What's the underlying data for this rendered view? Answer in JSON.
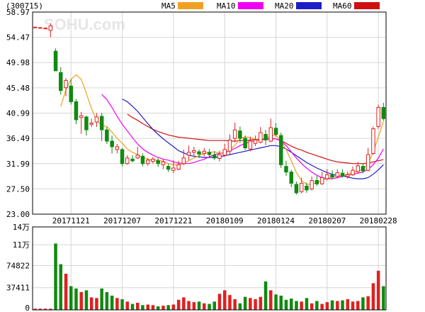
{
  "stock": {
    "code": "(300715)",
    "watermark": "SOHU.com"
  },
  "colors": {
    "ma5": "#f0a020",
    "ma10": "#f000f0",
    "ma20": "#1c1cc8",
    "ma60": "#d01010",
    "up": "#e02020",
    "down": "#108a10",
    "grid": "#d6d6d6",
    "frame": "#000000"
  },
  "legend": [
    {
      "label": "MA5",
      "key": "ma5"
    },
    {
      "label": "MA10",
      "key": "ma10"
    },
    {
      "label": "MA20",
      "key": "ma20"
    },
    {
      "label": "MA60",
      "key": "ma60"
    }
  ],
  "chart_data": [
    {
      "type": "candlestick",
      "ylim": [
        23.0,
        58.97
      ],
      "y_ticks": [
        "58.97",
        "54.47",
        "49.98",
        "45.48",
        "40.99",
        "36.49",
        "31.99",
        "27.50",
        "23.00"
      ],
      "x_ticks": [
        "20171121",
        "20171207",
        "20171221",
        "20180109",
        "20180124",
        "20180207",
        "20180228"
      ],
      "x_tick_index": [
        7,
        17,
        27,
        37,
        47,
        57,
        67
      ],
      "candles": [
        [
          56.3,
          56.3,
          56.3,
          56.3
        ],
        [
          56.2,
          56.2,
          56.2,
          56.2
        ],
        [
          56.1,
          56.1,
          56.1,
          56.1
        ],
        [
          55.7,
          56.5,
          57.0,
          54.5
        ],
        [
          52.0,
          48.5,
          52.5,
          48.5
        ],
        [
          48.2,
          45.0,
          49.2,
          44.3
        ],
        [
          45.5,
          46.8,
          47.2,
          44.0
        ],
        [
          45.8,
          43.0,
          47.0,
          42.5
        ],
        [
          43.0,
          39.8,
          43.5,
          39.0
        ],
        [
          40.2,
          40.5,
          41.2,
          37.3
        ],
        [
          40.3,
          38.0,
          40.5,
          37.0
        ],
        [
          39.0,
          39.2,
          40.0,
          38.5
        ],
        [
          39.4,
          40.3,
          41.0,
          38.5
        ],
        [
          40.4,
          38.0,
          41.0,
          36.0
        ],
        [
          38.0,
          36.0,
          38.5,
          35.5
        ],
        [
          36.0,
          35.0,
          37.0,
          33.8
        ],
        [
          34.5,
          35.0,
          35.5,
          33.8
        ],
        [
          34.5,
          32.0,
          34.8,
          31.5
        ],
        [
          32.0,
          33.0,
          33.5,
          31.8
        ],
        [
          32.8,
          32.5,
          33.5,
          32.2
        ],
        [
          33.0,
          33.5,
          35.0,
          32.8
        ],
        [
          33.3,
          32.0,
          33.8,
          31.5
        ],
        [
          32.0,
          32.6,
          33.0,
          31.6
        ],
        [
          32.4,
          32.8,
          33.2,
          32.0
        ],
        [
          32.5,
          32.0,
          33.0,
          31.4
        ],
        [
          31.8,
          32.3,
          32.8,
          31.0
        ],
        [
          31.5,
          31.0,
          32.0,
          30.5
        ],
        [
          30.8,
          31.2,
          32.6,
          30.3
        ],
        [
          31.0,
          31.8,
          32.5,
          30.8
        ],
        [
          32.0,
          33.0,
          34.5,
          31.7
        ],
        [
          33.5,
          34.0,
          35.2,
          32.6
        ],
        [
          34.0,
          34.3,
          35.0,
          33.4
        ],
        [
          34.1,
          33.7,
          34.5,
          33.0
        ],
        [
          33.8,
          34.2,
          34.8,
          33.3
        ],
        [
          34.0,
          33.6,
          34.6,
          33.0
        ],
        [
          33.5,
          33.0,
          34.2,
          32.6
        ],
        [
          32.9,
          33.6,
          34.3,
          32.4
        ],
        [
          33.5,
          34.5,
          35.5,
          33.2
        ],
        [
          34.2,
          36.2,
          37.2,
          33.5
        ],
        [
          36.5,
          38.0,
          39.3,
          35.8
        ],
        [
          37.8,
          36.5,
          38.6,
          35.7
        ],
        [
          36.5,
          34.8,
          37.0,
          34.4
        ],
        [
          34.6,
          36.0,
          36.8,
          34.2
        ],
        [
          35.6,
          36.2,
          37.0,
          35.1
        ],
        [
          35.8,
          37.5,
          38.5,
          35.6
        ],
        [
          37.2,
          36.2,
          38.0,
          35.3
        ],
        [
          36.0,
          38.4,
          40.0,
          35.8
        ],
        [
          38.3,
          37.2,
          39.2,
          36.8
        ],
        [
          37.0,
          31.8,
          37.5,
          31.2
        ],
        [
          31.5,
          30.5,
          32.5,
          29.8
        ],
        [
          30.5,
          28.5,
          30.9,
          27.8
        ],
        [
          28.3,
          26.8,
          28.8,
          26.5
        ],
        [
          27.0,
          28.5,
          29.5,
          26.7
        ],
        [
          28.0,
          27.3,
          28.6,
          26.8
        ],
        [
          27.5,
          29.0,
          29.7,
          27.2
        ],
        [
          29.0,
          28.4,
          29.8,
          28.0
        ],
        [
          28.4,
          29.5,
          30.5,
          28.2
        ],
        [
          29.3,
          30.0,
          31.0,
          29.0
        ],
        [
          30.0,
          29.6,
          30.8,
          29.2
        ],
        [
          29.7,
          30.4,
          31.0,
          29.4
        ],
        [
          30.3,
          29.8,
          31.0,
          29.5
        ],
        [
          29.7,
          30.0,
          30.6,
          29.3
        ],
        [
          30.0,
          30.8,
          31.5,
          29.8
        ],
        [
          30.6,
          31.6,
          32.3,
          30.2
        ],
        [
          31.5,
          30.7,
          32.0,
          30.3
        ],
        [
          30.8,
          33.6,
          34.8,
          30.6
        ],
        [
          33.8,
          38.2,
          38.6,
          33.6
        ],
        [
          38.6,
          42.0,
          42.5,
          38.2
        ],
        [
          42.0,
          40.0,
          42.8,
          39.6
        ]
      ],
      "ma5": [
        null,
        null,
        null,
        null,
        null,
        42.2,
        45.1,
        47.0,
        47.8,
        47.0,
        44.5,
        41.8,
        39.6,
        38.8,
        38.6,
        37.6,
        36.5,
        35.6,
        34.6,
        34.0,
        33.6,
        33.1,
        32.8,
        32.6,
        32.6,
        32.4,
        32.0,
        31.8,
        31.8,
        32.0,
        32.5,
        33.0,
        33.4,
        33.8,
        34.0,
        34.1,
        33.9,
        33.8,
        34.3,
        35.3,
        36.4,
        36.8,
        36.6,
        36.3,
        36.0,
        36.4,
        37.0,
        37.1,
        36.0,
        34.5,
        32.5,
        30.4,
        29.0,
        28.3,
        28.3,
        28.6,
        29.0,
        29.3,
        29.6,
        29.8,
        29.9,
        30.1,
        30.4,
        30.6,
        31.0,
        32.0,
        34.0,
        36.8,
        39.5
      ],
      "ma10": [
        null,
        null,
        null,
        null,
        null,
        null,
        null,
        null,
        null,
        null,
        null,
        null,
        null,
        44.3,
        43.4,
        42.0,
        40.4,
        39.0,
        37.8,
        36.6,
        35.5,
        34.6,
        34.0,
        33.5,
        33.1,
        32.8,
        32.6,
        32.3,
        32.1,
        32.0,
        32.0,
        32.2,
        32.5,
        32.8,
        33.2,
        33.6,
        33.8,
        34.0,
        34.3,
        34.7,
        35.2,
        35.6,
        35.9,
        36.1,
        36.2,
        36.3,
        36.4,
        36.4,
        36.0,
        35.2,
        34.1,
        33.0,
        32.0,
        31.2,
        30.5,
        29.9,
        29.5,
        29.3,
        29.3,
        29.5,
        29.7,
        29.9,
        30.1,
        30.3,
        30.5,
        31.0,
        31.8,
        33.0,
        34.6
      ],
      "ma20": [
        null,
        null,
        null,
        null,
        null,
        null,
        null,
        null,
        null,
        null,
        null,
        null,
        null,
        null,
        null,
        null,
        null,
        43.5,
        43.0,
        42.2,
        41.3,
        40.2,
        39.1,
        38.1,
        37.2,
        36.4,
        35.7,
        35.0,
        34.3,
        33.9,
        33.5,
        33.3,
        33.2,
        33.1,
        33.1,
        33.1,
        33.2,
        33.4,
        33.6,
        33.8,
        34.0,
        34.2,
        34.4,
        34.6,
        34.8,
        35.0,
        35.2,
        35.2,
        35.0,
        34.6,
        34.0,
        33.4,
        32.8,
        32.2,
        31.7,
        31.2,
        30.8,
        30.4,
        30.1,
        29.9,
        29.8,
        29.6,
        29.4,
        29.3,
        29.3,
        29.5,
        30.1,
        30.9,
        31.8
      ],
      "ma60": [
        null,
        null,
        null,
        null,
        null,
        null,
        null,
        null,
        null,
        null,
        null,
        null,
        null,
        null,
        null,
        null,
        null,
        null,
        40.8,
        40.2,
        39.7,
        39.1,
        38.6,
        38.1,
        37.7,
        37.4,
        37.1,
        36.9,
        36.7,
        36.6,
        36.5,
        36.4,
        36.3,
        36.2,
        36.1,
        36.1,
        36.1,
        36.1,
        36.0,
        36.0,
        36.1,
        36.1,
        36.2,
        36.3,
        36.3,
        36.4,
        36.4,
        36.4,
        36.1,
        35.6,
        35.1,
        34.7,
        34.4,
        34.0,
        33.7,
        33.4,
        33.1,
        32.8,
        32.5,
        32.3,
        32.2,
        32.1,
        32.0,
        32.0,
        32.0,
        32.1,
        32.3,
        32.5,
        32.7
      ]
    },
    {
      "type": "bar",
      "title": "",
      "ylim": [
        0,
        140000
      ],
      "y_ticks": [
        {
          "label": "14万",
          "value": 140000
        },
        {
          "label": "11万",
          "value": 110000
        },
        {
          "label": "74822",
          "value": 74822
        },
        {
          "label": "37411",
          "value": 37411
        },
        {
          "label": "0",
          "value": 0
        }
      ],
      "volumes": [
        2000,
        2000,
        2000,
        2000,
        112000,
        77000,
        61000,
        40000,
        36000,
        30000,
        33000,
        21000,
        20000,
        36000,
        30000,
        24000,
        20000,
        18000,
        14000,
        10000,
        12000,
        8000,
        9000,
        8000,
        6000,
        7000,
        8000,
        9000,
        17000,
        21000,
        15000,
        13000,
        14000,
        11000,
        10000,
        14000,
        27000,
        33000,
        25000,
        18000,
        11000,
        22000,
        20000,
        18000,
        22000,
        48000,
        33000,
        26000,
        24000,
        17000,
        19000,
        15000,
        14000,
        20000,
        11000,
        15000,
        10000,
        13000,
        16000,
        15000,
        16000,
        18000,
        14000,
        15000,
        21000,
        23000,
        45000,
        66000,
        40000
      ],
      "up": [
        true,
        true,
        true,
        true,
        false,
        false,
        true,
        false,
        false,
        true,
        false,
        true,
        true,
        false,
        false,
        false,
        true,
        false,
        true,
        false,
        true,
        false,
        true,
        true,
        false,
        true,
        false,
        true,
        true,
        true,
        true,
        true,
        false,
        true,
        false,
        false,
        true,
        true,
        true,
        true,
        false,
        false,
        true,
        true,
        true,
        false,
        true,
        false,
        false,
        false,
        false,
        false,
        true,
        false,
        true,
        false,
        true,
        true,
        false,
        true,
        false,
        true,
        true,
        true,
        false,
        true,
        true,
        true,
        false
      ]
    }
  ]
}
